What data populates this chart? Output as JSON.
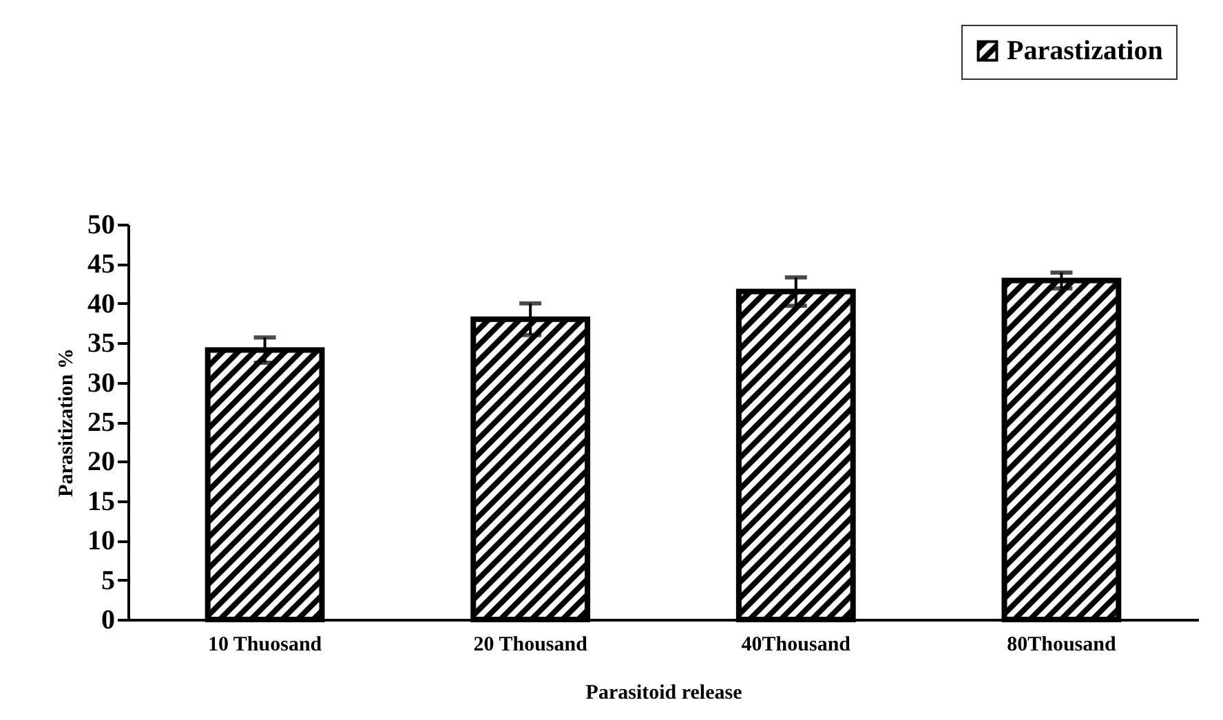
{
  "chart_data": {
    "type": "bar",
    "xlabel": "Parasitoid release",
    "ylabel": "Parasitization %",
    "categories": [
      "10 Thuosand",
      "20 Thousand",
      "40Thousand",
      "80Thousand"
    ],
    "series": [
      {
        "name": "Parastization",
        "color": "#000000",
        "values": [
          34.1,
          38.0,
          41.5,
          42.9
        ],
        "errors": [
          1.6,
          2.0,
          1.8,
          1.0
        ]
      }
    ],
    "ylim": [
      0,
      50
    ],
    "yticks": [
      0,
      5,
      10,
      15,
      20,
      25,
      30,
      35,
      40,
      45,
      50
    ],
    "grid": false,
    "legend": "top right"
  }
}
